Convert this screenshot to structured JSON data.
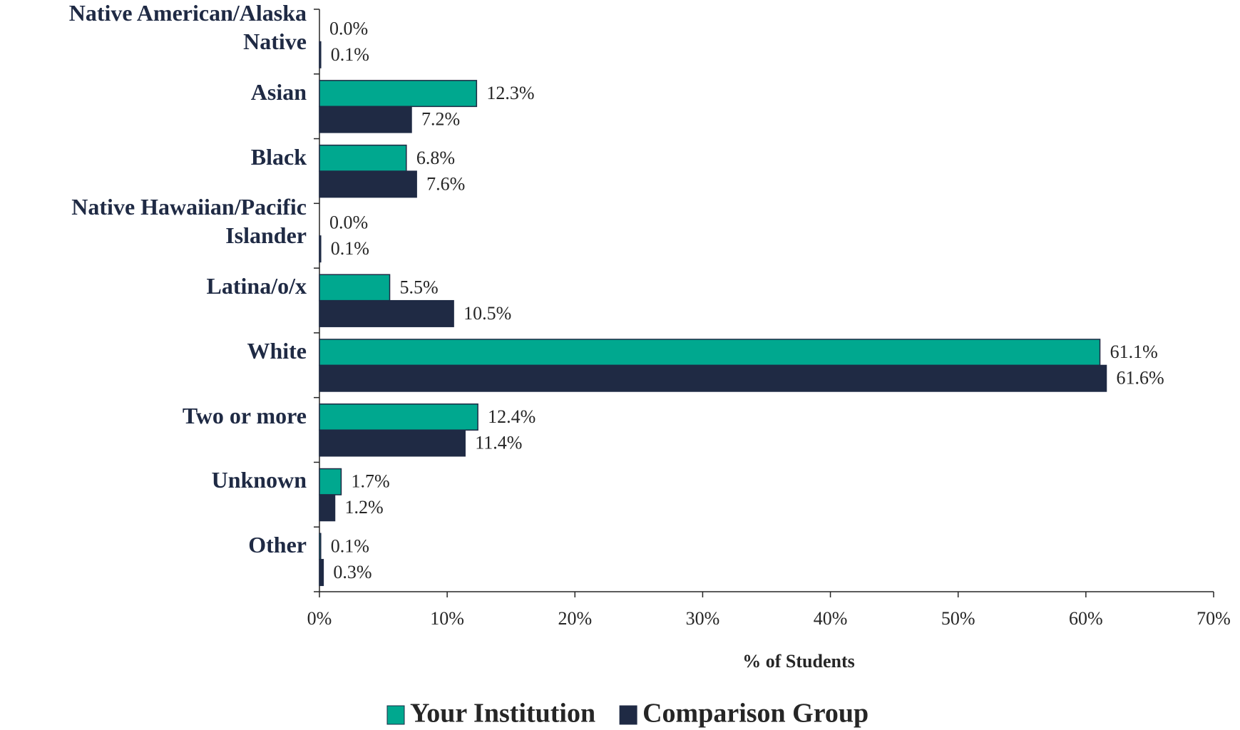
{
  "chart_data": {
    "type": "bar",
    "orientation": "horizontal",
    "categories": [
      "Native American/Alaska Native",
      "Asian",
      "Black",
      "Native Hawaiian/Pacific Islander",
      "Latina/o/x",
      "White",
      "Two or more",
      "Unknown",
      "Other"
    ],
    "series": [
      {
        "name": "Your Institution",
        "color": "#00a88f",
        "values": [
          0.0,
          12.3,
          6.8,
          0.0,
          5.5,
          61.1,
          12.4,
          1.7,
          0.1
        ],
        "value_labels": [
          "0.0%",
          "12.3%",
          "6.8%",
          "0.0%",
          "5.5%",
          "61.1%",
          "12.4%",
          "1.7%",
          "0.1%"
        ]
      },
      {
        "name": "Comparison Group",
        "color": "#1f2a44",
        "values": [
          0.1,
          7.2,
          7.6,
          0.1,
          10.5,
          61.6,
          11.4,
          1.2,
          0.3
        ],
        "value_labels": [
          "0.1%",
          "7.2%",
          "7.6%",
          "0.1%",
          "10.5%",
          "61.6%",
          "11.4%",
          "1.2%",
          "0.3%"
        ]
      }
    ],
    "xlabel": "% of Students",
    "xlim": [
      0,
      70
    ],
    "xticks": [
      {
        "value": 0,
        "label": "0%"
      },
      {
        "value": 10,
        "label": "10%"
      },
      {
        "value": 20,
        "label": "20%"
      },
      {
        "value": 30,
        "label": "30%"
      },
      {
        "value": 40,
        "label": "40%"
      },
      {
        "value": 50,
        "label": "50%"
      },
      {
        "value": 60,
        "label": "60%"
      },
      {
        "value": 70,
        "label": "70%"
      }
    ],
    "legend": "bottom"
  }
}
